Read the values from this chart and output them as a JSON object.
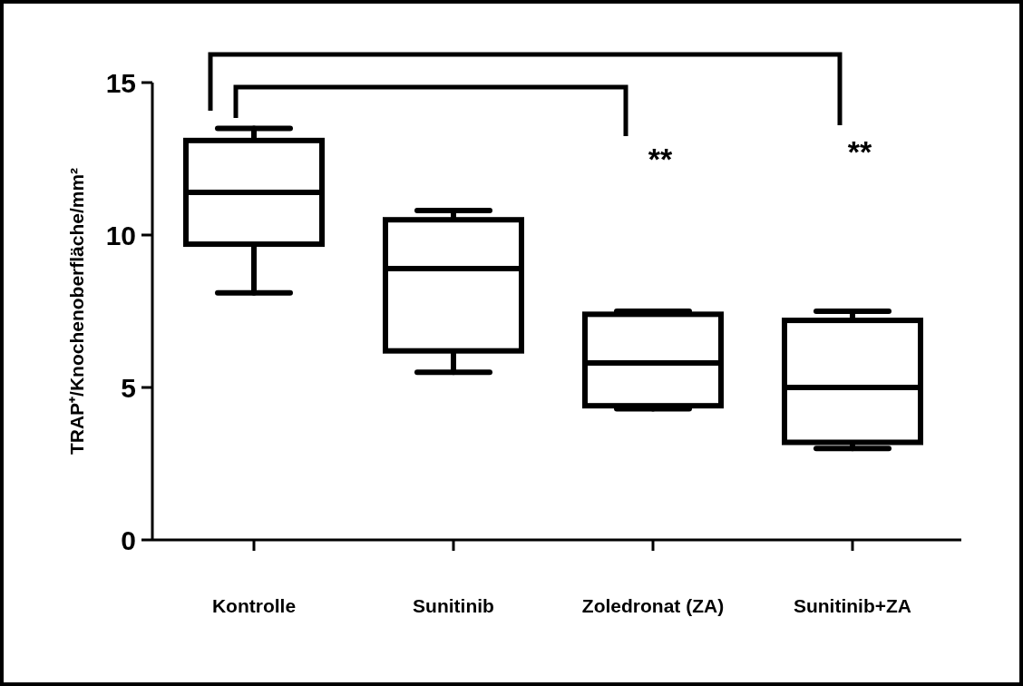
{
  "chart_data": {
    "type": "box",
    "ylabel": "TRAP⁺/Knochenoberfläche/mm²",
    "categories": [
      "Kontrolle",
      "Sunitinib",
      "Zoledronat (ZA)",
      "Sunitinib+ZA"
    ],
    "boxes": [
      {
        "low": 8.1,
        "q1": 9.7,
        "median": 11.4,
        "q3": 13.1,
        "high": 13.5
      },
      {
        "low": 5.5,
        "q1": 6.2,
        "median": 8.9,
        "q3": 10.5,
        "high": 10.8
      },
      {
        "low": 4.3,
        "q1": 4.4,
        "median": 5.8,
        "q3": 7.4,
        "high": 7.5
      },
      {
        "low": 3.0,
        "q1": 3.2,
        "median": 5.0,
        "q3": 7.2,
        "high": 7.5
      }
    ],
    "color": "#000000",
    "ylim": [
      0,
      15
    ],
    "yticks": [
      0,
      5,
      10,
      15
    ],
    "grid": false,
    "annotations": [
      "**",
      "**"
    ]
  }
}
